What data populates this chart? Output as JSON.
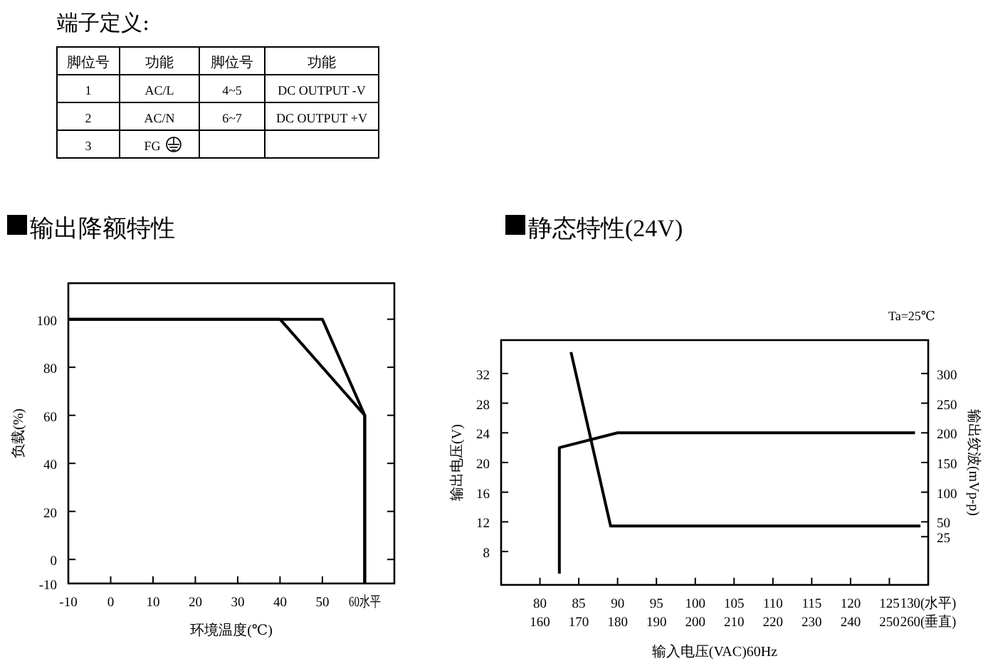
{
  "chart_data": [
    {
      "type": "other",
      "title": "端子定义:",
      "categories": [
        "脚位号",
        "功能",
        "脚位号",
        "功能"
      ],
      "cell_labels": [
        [
          "1",
          "AC/L",
          "4~5",
          "DC OUTPUT -V"
        ],
        [
          "2",
          "AC/N",
          "6~7",
          "DC OUTPUT +V"
        ],
        [
          "3",
          "FG",
          null,
          null
        ]
      ]
    },
    {
      "type": "line",
      "title": "输出降额特性",
      "xlabel": "环境温度(℃)",
      "ylabel": "负载(%)",
      "xlim": [
        -10,
        67
      ],
      "xticks": [
        -10,
        0,
        10,
        20,
        30,
        40,
        50,
        {
          "value": 60,
          "label": "60水平"
        }
      ],
      "ylim": [
        -10,
        115
      ],
      "yticks": [
        -10,
        0,
        20,
        40,
        60,
        80,
        100
      ],
      "series": [
        {
          "color": "#000000",
          "x": [
            -10,
            50,
            60,
            60
          ],
          "values": [
            100,
            100,
            60,
            -10
          ]
        },
        {
          "color": "#000000",
          "x": [
            -10,
            40,
            60,
            60
          ],
          "values": [
            100,
            100,
            60,
            -10
          ]
        }
      ]
    },
    {
      "type": "line",
      "title": "静态特性(24V)",
      "xlabel": "输入电压(VAC)60Hz",
      "ylabel": "输出电压(V)",
      "y2label": "输出纹波(mVp-p)",
      "annotations": [
        "Ta=25℃"
      ],
      "xlim": [
        75,
        130
      ],
      "xticks": [
        80,
        85,
        90,
        95,
        100,
        105,
        110,
        115,
        120,
        125,
        {
          "value": 130,
          "label": "130(水平)"
        }
      ],
      "x2lim": [
        150,
        260
      ],
      "x2ticks": [
        160,
        170,
        180,
        190,
        200,
        210,
        220,
        230,
        240,
        250,
        {
          "value": 260,
          "label": "260(垂直)"
        }
      ],
      "ylim": [
        3.5,
        36.5
      ],
      "yticks": [
        8,
        12,
        16,
        20,
        24,
        28,
        32
      ],
      "y2lim": [
        -56.25,
        356.25
      ],
      "y2ticks": [
        25,
        50,
        100,
        150,
        200,
        250,
        300
      ],
      "series": [
        {
          "color": "#000000",
          "x": [
            82.5,
            82.5,
            90,
            128.3
          ],
          "values": [
            5,
            22,
            24,
            24
          ]
        },
        {
          "color": "#000000",
          "axis": "y2",
          "x": [
            84,
            89.1,
            129
          ],
          "values": [
            336,
            43,
            43
          ]
        }
      ]
    }
  ]
}
